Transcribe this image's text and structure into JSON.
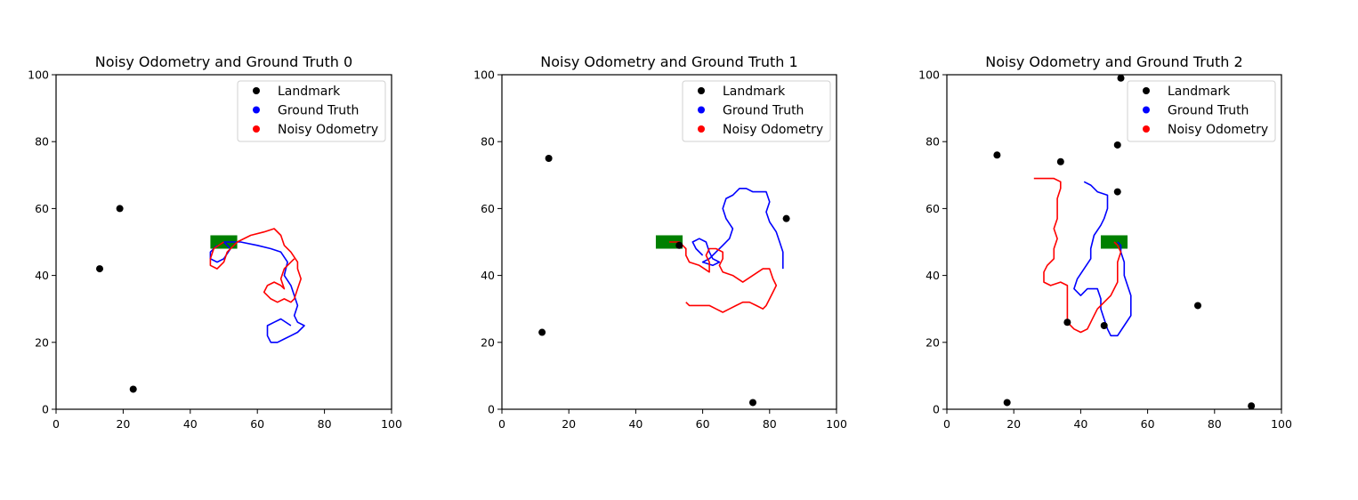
{
  "chart_data": [
    {
      "type": "scatter",
      "title": "Noisy Odometry and Ground Truth 0",
      "xlim": [
        0,
        100
      ],
      "ylim": [
        0,
        100
      ],
      "xticks": [
        0,
        20,
        40,
        60,
        80,
        100
      ],
      "yticks": [
        0,
        20,
        40,
        60,
        80,
        100
      ],
      "grid": false,
      "legend_placement": "top-right",
      "legend": [
        "Landmark",
        "Ground Truth",
        "Noisy Odometry"
      ],
      "colors": {
        "landmark": "#000000",
        "ground_truth": "#0000ff",
        "noisy_odometry": "#ff0000",
        "start": "#008000"
      },
      "start_marker": {
        "x": [
          46,
          54
        ],
        "y": [
          48,
          52
        ]
      },
      "landmarks": [
        [
          19,
          60
        ],
        [
          13,
          42
        ],
        [
          23,
          6
        ]
      ],
      "ground_truth": [
        [
          48,
          49
        ],
        [
          46,
          47
        ],
        [
          46,
          45
        ],
        [
          48,
          44
        ],
        [
          50,
          45
        ],
        [
          52,
          48
        ],
        [
          50,
          50
        ],
        [
          55,
          50
        ],
        [
          60,
          49
        ],
        [
          64,
          48
        ],
        [
          67,
          47
        ],
        [
          69,
          44
        ],
        [
          68,
          40
        ],
        [
          70,
          37
        ],
        [
          71,
          34
        ],
        [
          72,
          31
        ],
        [
          71,
          28
        ],
        [
          72,
          26
        ],
        [
          74,
          25
        ],
        [
          72,
          23
        ],
        [
          70,
          22
        ],
        [
          68,
          21
        ],
        [
          66,
          20
        ],
        [
          64,
          20
        ],
        [
          63,
          22
        ],
        [
          63,
          25
        ],
        [
          65,
          26
        ],
        [
          67,
          27
        ],
        [
          70,
          25
        ]
      ],
      "noisy_odometry": [
        [
          50,
          50
        ],
        [
          47,
          48
        ],
        [
          46,
          45
        ],
        [
          46,
          43
        ],
        [
          48,
          42
        ],
        [
          50,
          44
        ],
        [
          51,
          47
        ],
        [
          54,
          50
        ],
        [
          58,
          52
        ],
        [
          62,
          53
        ],
        [
          65,
          54
        ],
        [
          67,
          52
        ],
        [
          68,
          49
        ],
        [
          70,
          47
        ],
        [
          72,
          44
        ],
        [
          72,
          42
        ],
        [
          73,
          39
        ],
        [
          72,
          36
        ],
        [
          71,
          33
        ],
        [
          70,
          32
        ],
        [
          68,
          33
        ],
        [
          66,
          32
        ],
        [
          64,
          33
        ],
        [
          62,
          35
        ],
        [
          63,
          37
        ],
        [
          65,
          38
        ],
        [
          67,
          37
        ],
        [
          68,
          36
        ],
        [
          67,
          39
        ],
        [
          68,
          42
        ],
        [
          70,
          44
        ],
        [
          71,
          45
        ]
      ]
    },
    {
      "type": "scatter",
      "title": "Noisy Odometry and Ground Truth 1",
      "xlim": [
        0,
        100
      ],
      "ylim": [
        0,
        100
      ],
      "xticks": [
        0,
        20,
        40,
        60,
        80,
        100
      ],
      "yticks": [
        0,
        20,
        40,
        60,
        80,
        100
      ],
      "grid": false,
      "legend_placement": "top-right",
      "legend": [
        "Landmark",
        "Ground Truth",
        "Noisy Odometry"
      ],
      "colors": {
        "landmark": "#000000",
        "ground_truth": "#0000ff",
        "noisy_odometry": "#ff0000",
        "start": "#008000"
      },
      "start_marker": {
        "x": [
          46,
          54
        ],
        "y": [
          48,
          52
        ]
      },
      "landmarks": [
        [
          14,
          75
        ],
        [
          12,
          23
        ],
        [
          53,
          49
        ],
        [
          85,
          57
        ],
        [
          75,
          2
        ]
      ],
      "ground_truth": [
        [
          60,
          46
        ],
        [
          58,
          48
        ],
        [
          57,
          50
        ],
        [
          59,
          51
        ],
        [
          61,
          50
        ],
        [
          62,
          47
        ],
        [
          63,
          45
        ],
        [
          65,
          44
        ],
        [
          63,
          43
        ],
        [
          60,
          44
        ],
        [
          62,
          45
        ],
        [
          64,
          47
        ],
        [
          66,
          49
        ],
        [
          68,
          51
        ],
        [
          69,
          54
        ],
        [
          67,
          57
        ],
        [
          66,
          60
        ],
        [
          67,
          63
        ],
        [
          69,
          64
        ],
        [
          71,
          66
        ],
        [
          73,
          66
        ],
        [
          75,
          65
        ],
        [
          77,
          65
        ],
        [
          79,
          65
        ],
        [
          80,
          62
        ],
        [
          79,
          59
        ],
        [
          80,
          56
        ],
        [
          82,
          53
        ],
        [
          83,
          50
        ],
        [
          84,
          47
        ],
        [
          84,
          44
        ],
        [
          84,
          42
        ]
      ],
      "noisy_odometry": [
        [
          50,
          50
        ],
        [
          53,
          50
        ],
        [
          55,
          48
        ],
        [
          55,
          46
        ],
        [
          56,
          44
        ],
        [
          59,
          43
        ],
        [
          62,
          41
        ],
        [
          62,
          44
        ],
        [
          61,
          46
        ],
        [
          62,
          48
        ],
        [
          64,
          48
        ],
        [
          66,
          47
        ],
        [
          66,
          45
        ],
        [
          65,
          43
        ],
        [
          66,
          41
        ],
        [
          69,
          40
        ],
        [
          72,
          38
        ],
        [
          75,
          40
        ],
        [
          78,
          42
        ],
        [
          80,
          42
        ],
        [
          81,
          39
        ],
        [
          82,
          37
        ],
        [
          81,
          35
        ],
        [
          80,
          33
        ],
        [
          79,
          31
        ],
        [
          78,
          30
        ],
        [
          76,
          31
        ],
        [
          74,
          32
        ],
        [
          72,
          32
        ],
        [
          70,
          31
        ],
        [
          68,
          30
        ],
        [
          66,
          29
        ],
        [
          64,
          30
        ],
        [
          62,
          31
        ],
        [
          60,
          31
        ],
        [
          58,
          31
        ],
        [
          56,
          31
        ],
        [
          55,
          32
        ]
      ]
    },
    {
      "type": "scatter",
      "title": "Noisy Odometry and Ground Truth 2",
      "xlim": [
        0,
        100
      ],
      "ylim": [
        0,
        100
      ],
      "xticks": [
        0,
        20,
        40,
        60,
        80,
        100
      ],
      "yticks": [
        0,
        20,
        40,
        60,
        80,
        100
      ],
      "grid": false,
      "legend_placement": "top-right",
      "legend": [
        "Landmark",
        "Ground Truth",
        "Noisy Odometry"
      ],
      "colors": {
        "landmark": "#000000",
        "ground_truth": "#0000ff",
        "noisy_odometry": "#ff0000",
        "start": "#008000"
      },
      "start_marker": {
        "x": [
          46,
          54
        ],
        "y": [
          48,
          52
        ]
      },
      "landmarks": [
        [
          52,
          99
        ],
        [
          15,
          76
        ],
        [
          34,
          74
        ],
        [
          51,
          79
        ],
        [
          51,
          65
        ],
        [
          75,
          31
        ],
        [
          36,
          26
        ],
        [
          47,
          25
        ],
        [
          18,
          2
        ],
        [
          91,
          1
        ]
      ],
      "ground_truth": [
        [
          41,
          68
        ],
        [
          43,
          67
        ],
        [
          45,
          65
        ],
        [
          48,
          64
        ],
        [
          48,
          60
        ],
        [
          47,
          57
        ],
        [
          46,
          55
        ],
        [
          44,
          52
        ],
        [
          43,
          48
        ],
        [
          43,
          45
        ],
        [
          41,
          42
        ],
        [
          39,
          39
        ],
        [
          38,
          36
        ],
        [
          40,
          34
        ],
        [
          42,
          36
        ],
        [
          45,
          36
        ],
        [
          46,
          33
        ],
        [
          46,
          30
        ],
        [
          47,
          27
        ],
        [
          48,
          24
        ],
        [
          49,
          22
        ],
        [
          51,
          22
        ],
        [
          53,
          25
        ],
        [
          55,
          28
        ],
        [
          55,
          31
        ],
        [
          55,
          34
        ],
        [
          54,
          37
        ],
        [
          53,
          40
        ],
        [
          53,
          44
        ],
        [
          52,
          47
        ],
        [
          52,
          49
        ],
        [
          51,
          50
        ]
      ],
      "noisy_odometry": [
        [
          26,
          69
        ],
        [
          28,
          69
        ],
        [
          30,
          69
        ],
        [
          32,
          69
        ],
        [
          34,
          68
        ],
        [
          34,
          66
        ],
        [
          33,
          63
        ],
        [
          33,
          60
        ],
        [
          33,
          57
        ],
        [
          32,
          54
        ],
        [
          33,
          51
        ],
        [
          32,
          48
        ],
        [
          32,
          45
        ],
        [
          30,
          43
        ],
        [
          29,
          41
        ],
        [
          29,
          38
        ],
        [
          31,
          37
        ],
        [
          34,
          38
        ],
        [
          36,
          37
        ],
        [
          36,
          34
        ],
        [
          36,
          31
        ],
        [
          36,
          28
        ],
        [
          36,
          26
        ],
        [
          38,
          24
        ],
        [
          40,
          23
        ],
        [
          42,
          24
        ],
        [
          43,
          26
        ],
        [
          44,
          28
        ],
        [
          45,
          30
        ],
        [
          47,
          32
        ],
        [
          49,
          34
        ],
        [
          50,
          36
        ],
        [
          51,
          38
        ],
        [
          51,
          41
        ],
        [
          51,
          44
        ],
        [
          52,
          47
        ],
        [
          51,
          49
        ],
        [
          50,
          50
        ]
      ]
    }
  ]
}
